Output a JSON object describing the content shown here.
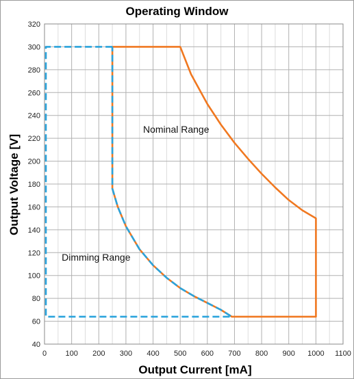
{
  "chart_data": {
    "type": "line",
    "title": "Operating Window",
    "xlabel": "Output Current [mA]",
    "ylabel": "Output Voltage [V]",
    "xlim": [
      0,
      1100
    ],
    "ylim": [
      40,
      320
    ],
    "xticks": [
      0,
      100,
      200,
      300,
      400,
      500,
      600,
      700,
      800,
      900,
      1000,
      1100
    ],
    "yticks": [
      40,
      60,
      80,
      100,
      120,
      140,
      160,
      180,
      200,
      220,
      240,
      260,
      280,
      300,
      320
    ],
    "grid": true,
    "legend": "none",
    "series": [
      {
        "label": "Nominal Range",
        "color": "#f07820",
        "style": "solid",
        "points": [
          [
            250,
            300
          ],
          [
            500,
            300
          ],
          [
            540,
            276
          ],
          [
            600,
            250
          ],
          [
            650,
            232
          ],
          [
            700,
            216
          ],
          [
            750,
            202
          ],
          [
            800,
            189
          ],
          [
            850,
            177
          ],
          [
            900,
            166
          ],
          [
            950,
            157
          ],
          [
            1000,
            150
          ],
          [
            1000,
            64
          ],
          [
            690,
            64
          ],
          [
            650,
            70
          ],
          [
            600,
            76
          ],
          [
            550,
            82
          ],
          [
            500,
            89
          ],
          [
            450,
            98
          ],
          [
            400,
            109
          ],
          [
            350,
            123
          ],
          [
            300,
            143
          ],
          [
            270,
            160
          ],
          [
            250,
            176
          ],
          [
            250,
            300
          ]
        ]
      },
      {
        "label": "Dimming Range",
        "color": "#29a3dc",
        "style": "dashed",
        "points": [
          [
            250,
            300
          ],
          [
            5,
            300
          ],
          [
            5,
            64
          ],
          [
            690,
            64
          ],
          [
            650,
            70
          ],
          [
            600,
            76
          ],
          [
            550,
            82
          ],
          [
            500,
            89
          ],
          [
            450,
            98
          ],
          [
            400,
            109
          ],
          [
            350,
            123
          ],
          [
            300,
            143
          ],
          [
            270,
            160
          ],
          [
            250,
            176
          ],
          [
            250,
            300
          ]
        ]
      }
    ],
    "annotations": [
      {
        "text": "Nominal Range",
        "x": 485,
        "y": 225
      },
      {
        "text": "Dimming Range",
        "x": 190,
        "y": 113
      }
    ]
  }
}
